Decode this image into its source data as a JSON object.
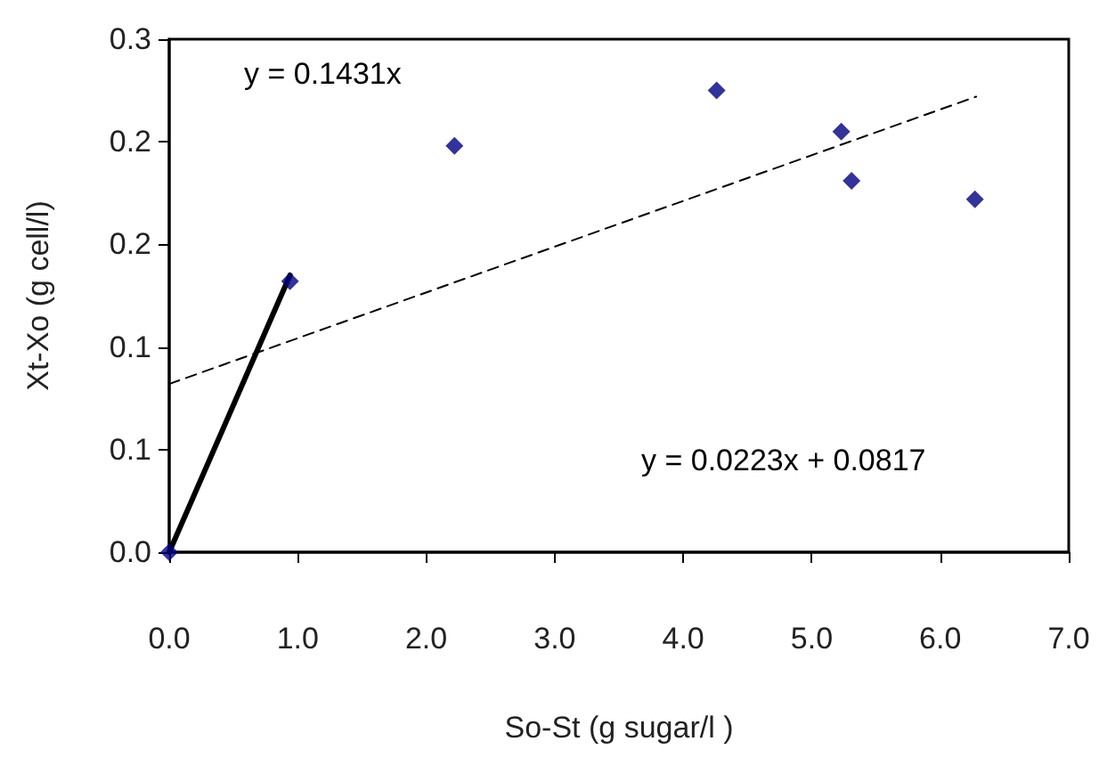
{
  "chart_data": {
    "type": "scatter",
    "xlabel": "So-St (g sugar/l )",
    "ylabel": "Xt-Xo (g cell/l)",
    "annotations": [
      "y = 0.1431x",
      "y = 0.0223x + 0.0817"
    ],
    "xlim": [
      0,
      7
    ],
    "xticks": [
      {
        "value": 0,
        "label": "0.0"
      },
      {
        "value": 1,
        "label": "1.0"
      },
      {
        "value": 2,
        "label": "2.0"
      },
      {
        "value": 3,
        "label": "3.0"
      },
      {
        "value": 4,
        "label": "4.0"
      },
      {
        "value": 5,
        "label": "5.0"
      },
      {
        "value": 6,
        "label": "6.0"
      },
      {
        "value": 7,
        "label": "7.0"
      }
    ],
    "ylim": [
      0,
      0.25
    ],
    "yticks": [
      {
        "value": 0,
        "label": "0.0"
      },
      {
        "value": 0.05,
        "label": "0.1"
      },
      {
        "value": 0.1,
        "label": "0.1"
      },
      {
        "value": 0.15,
        "label": "0.2"
      },
      {
        "value": 0.2,
        "label": "0.2"
      },
      {
        "value": 0.25,
        "label": "0.3"
      }
    ],
    "grid": false,
    "series": [
      {
        "type": "line",
        "color": "#000000",
        "marker": "none",
        "line_style": "solid",
        "x": [
          0,
          0.94
        ],
        "values": [
          0,
          0.135
        ]
      },
      {
        "type": "line",
        "color": "#000000",
        "marker": "none",
        "line_style": "dashed",
        "x": [
          0,
          6.28
        ],
        "values": [
          0.082,
          0.222
        ]
      },
      {
        "color": "#000080",
        "marker": "diamond",
        "x": [
          0,
          0.94
        ],
        "values": [
          0,
          0.132
        ]
      },
      {
        "color": "#000080",
        "marker": "diamond",
        "x": [
          2.22,
          4.26,
          5.23,
          5.31,
          6.27
        ],
        "values": [
          0.198,
          0.225,
          0.205,
          0.181,
          0.172
        ]
      }
    ]
  }
}
